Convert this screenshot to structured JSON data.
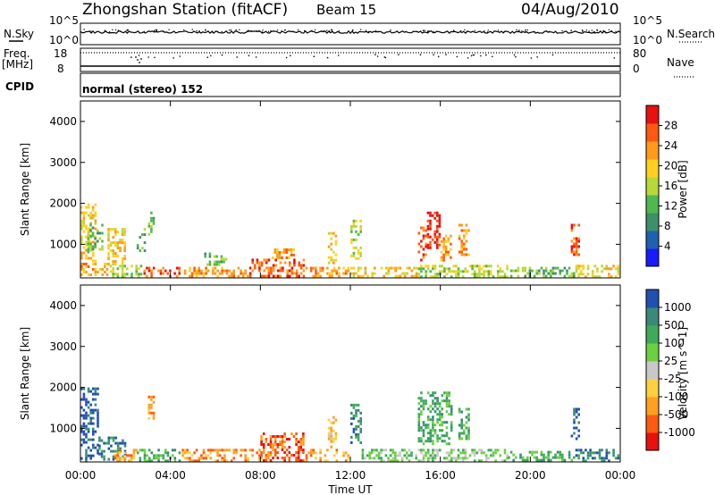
{
  "header": {
    "station": "Zhongshan Station (fitACF)",
    "beam": "Beam 15",
    "date": "04/Aug/2010"
  },
  "status_panel": {
    "nsky_label": "N.Sky",
    "nsearch_label": "N.Search",
    "freq_label": "Freq.",
    "freq_unit": "[MHz]",
    "nave_label": "Nave",
    "cpid_label": "CPID",
    "cpid_text": "normal (stereo) 152",
    "noise_ticks_left": [
      "10^5",
      "10^0"
    ],
    "noise_ticks_right": [
      "10^5",
      "10^0"
    ],
    "freq_ticks": [
      "18",
      "8"
    ],
    "nave_ticks": [
      "80",
      "0"
    ]
  },
  "xaxis": {
    "label": "Time UT",
    "ticks": [
      "00:00",
      "04:00",
      "08:00",
      "12:00",
      "16:00",
      "20:00",
      "00:00"
    ]
  },
  "colors": {
    "power": [
      "#1a1aff",
      "#2060b0",
      "#3f8f6b",
      "#4fb84f",
      "#b8d83a",
      "#ffd020",
      "#ff9a1a",
      "#ff5a10",
      "#e81010"
    ],
    "velocity": [
      "#e81010",
      "#ff5a10",
      "#ffa020",
      "#ffd040",
      "#c8c8c8",
      "#6cd040",
      "#3faa5a",
      "#3a8a7a",
      "#2050b0"
    ]
  },
  "chart_data": [
    {
      "type": "heatmap",
      "name": "Power",
      "ylabel": "Slant Range [km]",
      "colorbar_label": "Power [dB]",
      "colorbar_ticks": [
        "28",
        "24",
        "20",
        "16",
        "12",
        "8",
        "4"
      ],
      "xlim": [
        0,
        24
      ],
      "ylim": [
        180,
        4500
      ],
      "yticks": [
        "4000",
        "3000",
        "2000",
        "1000"
      ],
      "patches": [
        {
          "t0": 0.0,
          "t1": 1.2,
          "r0": 200,
          "r1": 550,
          "level": 6
        },
        {
          "t0": 0.0,
          "t1": 0.7,
          "r0": 550,
          "r1": 2000,
          "level": 5
        },
        {
          "t0": 0.3,
          "t1": 1.0,
          "r0": 800,
          "r1": 1500,
          "level": 3
        },
        {
          "t0": 1.2,
          "t1": 2.8,
          "r0": 200,
          "r1": 500,
          "level": 4
        },
        {
          "t0": 1.2,
          "t1": 2.0,
          "r0": 500,
          "r1": 1400,
          "level": 5
        },
        {
          "t0": 2.5,
          "t1": 2.9,
          "r0": 800,
          "r1": 1400,
          "level": 3
        },
        {
          "t0": 2.8,
          "t1": 4.5,
          "r0": 200,
          "r1": 450,
          "level": 7
        },
        {
          "t0": 3.0,
          "t1": 3.3,
          "r0": 1200,
          "r1": 1800,
          "level": 3
        },
        {
          "t0": 4.5,
          "t1": 7.5,
          "r0": 200,
          "r1": 450,
          "level": 6
        },
        {
          "t0": 5.5,
          "t1": 6.5,
          "r0": 500,
          "r1": 800,
          "level": 3
        },
        {
          "t0": 7.5,
          "t1": 10.0,
          "r0": 200,
          "r1": 650,
          "level": 7
        },
        {
          "t0": 8.5,
          "t1": 9.5,
          "r0": 650,
          "r1": 900,
          "level": 6
        },
        {
          "t0": 10.0,
          "t1": 12.0,
          "r0": 200,
          "r1": 450,
          "level": 6
        },
        {
          "t0": 11.0,
          "t1": 11.4,
          "r0": 500,
          "r1": 1300,
          "level": 5
        },
        {
          "t0": 12.0,
          "t1": 12.5,
          "r0": 600,
          "r1": 1600,
          "level": 4
        },
        {
          "t0": 12.0,
          "t1": 15.0,
          "r0": 200,
          "r1": 450,
          "level": 5
        },
        {
          "t0": 15.0,
          "t1": 15.4,
          "r0": 600,
          "r1": 1500,
          "level": 7
        },
        {
          "t0": 15.4,
          "t1": 16.0,
          "r0": 900,
          "r1": 1800,
          "level": 8
        },
        {
          "t0": 16.0,
          "t1": 16.5,
          "r0": 600,
          "r1": 1300,
          "level": 6
        },
        {
          "t0": 16.8,
          "t1": 17.3,
          "r0": 700,
          "r1": 1500,
          "level": 6
        },
        {
          "t0": 15.0,
          "t1": 19.0,
          "r0": 200,
          "r1": 500,
          "level": 4
        },
        {
          "t0": 19.0,
          "t1": 22.0,
          "r0": 200,
          "r1": 450,
          "level": 3
        },
        {
          "t0": 21.8,
          "t1": 22.2,
          "r0": 700,
          "r1": 1500,
          "level": 7
        },
        {
          "t0": 22.0,
          "t1": 24.0,
          "r0": 200,
          "r1": 500,
          "level": 5
        }
      ]
    },
    {
      "type": "heatmap",
      "name": "Velocity",
      "ylabel": "Slant Range [km]",
      "colorbar_label": "Velocity [m s^-1]",
      "colorbar_ticks": [
        "1000",
        "500",
        "100",
        "25",
        "-25",
        "-100",
        "-500",
        "-1000"
      ],
      "xlim": [
        0,
        24
      ],
      "ylim": [
        180,
        4500
      ],
      "yticks": [
        "4000",
        "3000",
        "2000",
        "1000"
      ],
      "patches": [
        {
          "t0": 0.0,
          "t1": 0.8,
          "r0": 200,
          "r1": 2000,
          "level": 8
        },
        {
          "t0": 0.8,
          "t1": 2.0,
          "r0": 200,
          "r1": 800,
          "level": 7
        },
        {
          "t0": 1.5,
          "t1": 2.5,
          "r0": 200,
          "r1": 500,
          "level": 2
        },
        {
          "t0": 2.5,
          "t1": 4.5,
          "r0": 200,
          "r1": 500,
          "level": 6
        },
        {
          "t0": 3.0,
          "t1": 3.3,
          "r0": 1200,
          "r1": 1800,
          "level": 2
        },
        {
          "t0": 4.5,
          "t1": 8.0,
          "r0": 200,
          "r1": 500,
          "level": 2
        },
        {
          "t0": 8.0,
          "t1": 10.0,
          "r0": 200,
          "r1": 900,
          "level": 1
        },
        {
          "t0": 10.0,
          "t1": 12.0,
          "r0": 200,
          "r1": 500,
          "level": 2
        },
        {
          "t0": 11.0,
          "t1": 11.4,
          "r0": 500,
          "r1": 1300,
          "level": 3
        },
        {
          "t0": 12.0,
          "t1": 12.5,
          "r0": 600,
          "r1": 1600,
          "level": 7
        },
        {
          "t0": 12.5,
          "t1": 15.0,
          "r0": 200,
          "r1": 500,
          "level": 5
        },
        {
          "t0": 15.0,
          "t1": 16.5,
          "r0": 600,
          "r1": 1900,
          "level": 6
        },
        {
          "t0": 16.8,
          "t1": 17.3,
          "r0": 700,
          "r1": 1500,
          "level": 6
        },
        {
          "t0": 15.0,
          "t1": 19.0,
          "r0": 200,
          "r1": 500,
          "level": 5
        },
        {
          "t0": 19.0,
          "t1": 22.0,
          "r0": 200,
          "r1": 450,
          "level": 6
        },
        {
          "t0": 21.8,
          "t1": 22.2,
          "r0": 700,
          "r1": 1500,
          "level": 8
        },
        {
          "t0": 22.0,
          "t1": 24.0,
          "r0": 200,
          "r1": 500,
          "level": 7
        }
      ]
    }
  ]
}
